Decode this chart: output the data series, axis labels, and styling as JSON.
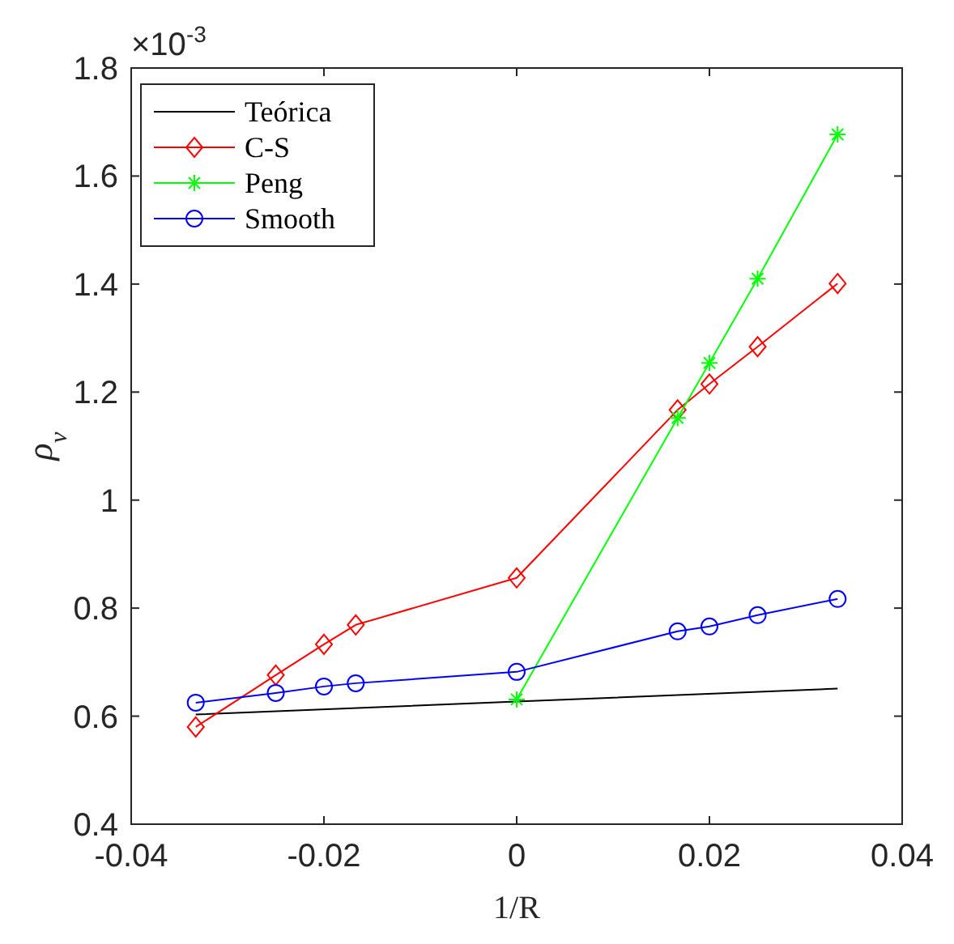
{
  "chart_data": {
    "type": "line",
    "xlabel": "1/R",
    "ylabel": "ρ$_{v}$",
    "annotations": [
      "×10$^{-3}$"
    ],
    "xlim": [
      -0.04,
      0.04
    ],
    "xticks": [
      -0.04,
      -0.02,
      0,
      0.02,
      0.04
    ],
    "ylim": [
      0.4,
      1.8
    ],
    "yticks": [
      0.4,
      0.6,
      0.8,
      1,
      1.2,
      1.4,
      1.6,
      1.8
    ],
    "grid": false,
    "legend": "top left",
    "line_style": "solid",
    "series": [
      {
        "name": "Teórica",
        "color": "#000000",
        "marker": "none",
        "x": [
          -0.0333,
          0,
          0.0333
        ],
        "values": [
          0.603,
          0.627,
          0.651
        ]
      },
      {
        "name": "C-S",
        "color": "#ff0000",
        "marker": "diamond",
        "x": [
          -0.0333,
          -0.025,
          -0.02,
          -0.0167,
          0,
          0.0167,
          0.02,
          0.025,
          0.0333
        ],
        "values": [
          0.58,
          0.676,
          0.733,
          0.769,
          0.856,
          1.167,
          1.215,
          1.284,
          1.401
        ]
      },
      {
        "name": "Peng",
        "color": "#00ff00",
        "marker": "cross",
        "x": [
          0,
          0.0167,
          0.02,
          0.025,
          0.0333
        ],
        "values": [
          0.631,
          1.152,
          1.254,
          1.41,
          1.677
        ]
      },
      {
        "name": "Smooth",
        "color": "#0000ff",
        "marker": "circle",
        "x": [
          -0.0333,
          -0.025,
          -0.02,
          -0.0167,
          0,
          0.0167,
          0.02,
          0.025,
          0.0333
        ],
        "values": [
          0.625,
          0.643,
          0.655,
          0.661,
          0.682,
          0.757,
          0.766,
          0.787,
          0.817
        ]
      }
    ]
  }
}
